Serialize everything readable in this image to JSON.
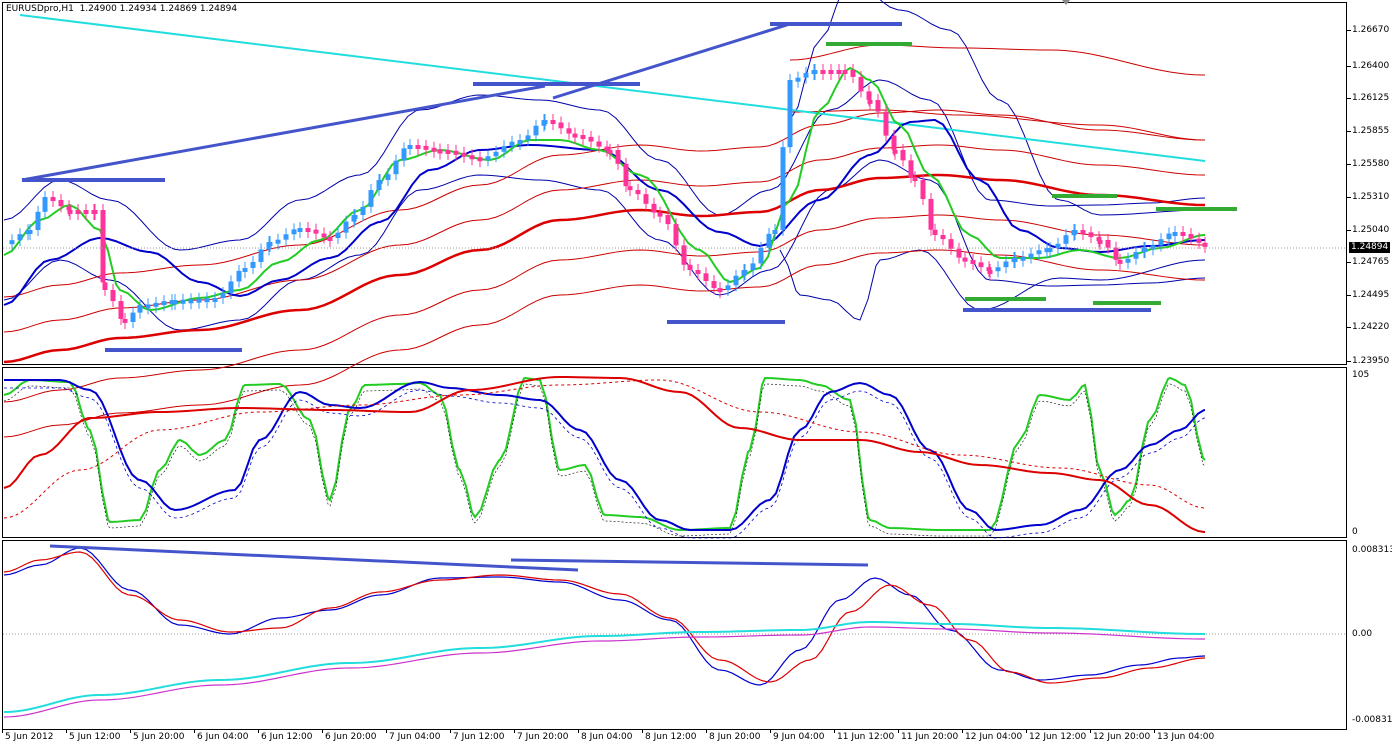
{
  "symbol": {
    "name": "EURUSDpro,H1",
    "open": "1.24900",
    "high": "1.24934",
    "low": "1.24869",
    "close": "1.24894"
  },
  "current_price": "1.24894",
  "price_axis": [
    "1.26670",
    "1.26400",
    "1.26125",
    "1.25855",
    "1.25580",
    "1.25310",
    "1.25040",
    "1.24765",
    "1.24495",
    "1.24220",
    "1.23950"
  ],
  "osc1_axis": {
    "top": "105",
    "bottom": "0"
  },
  "osc2_axis": {
    "top": "0.008313",
    "mid": "0.00",
    "bottom": "-0.008313"
  },
  "time_axis": [
    "5 Jun 2012",
    "5 Jun 12:00",
    "5 Jun 20:00",
    "6 Jun 04:00",
    "6 Jun 12:00",
    "6 Jun 20:00",
    "7 Jun 04:00",
    "7 Jun 12:00",
    "7 Jun 20:00",
    "8 Jun 04:00",
    "8 Jun 12:00",
    "8 Jun 20:00",
    "9 Jun 04:00",
    "11 Jun 12:00",
    "11 Jun 20:00",
    "12 Jun 04:00",
    "12 Jun 12:00",
    "12 Jun 20:00",
    "13 Jun 04:00"
  ],
  "colors": {
    "bull_candle": "#3399ff",
    "bear_candle": "#ff3399",
    "ma_fast": "#22cc22",
    "ma_mid": "#0000cc",
    "ma_slow": "#dd0000",
    "trend_cyan": "#22dddd",
    "level_blue": "#4455cc",
    "level_green": "#33aa33",
    "osc_magenta": "#cc33cc"
  },
  "icons": {
    "corner": "triangle-down-icon"
  }
}
